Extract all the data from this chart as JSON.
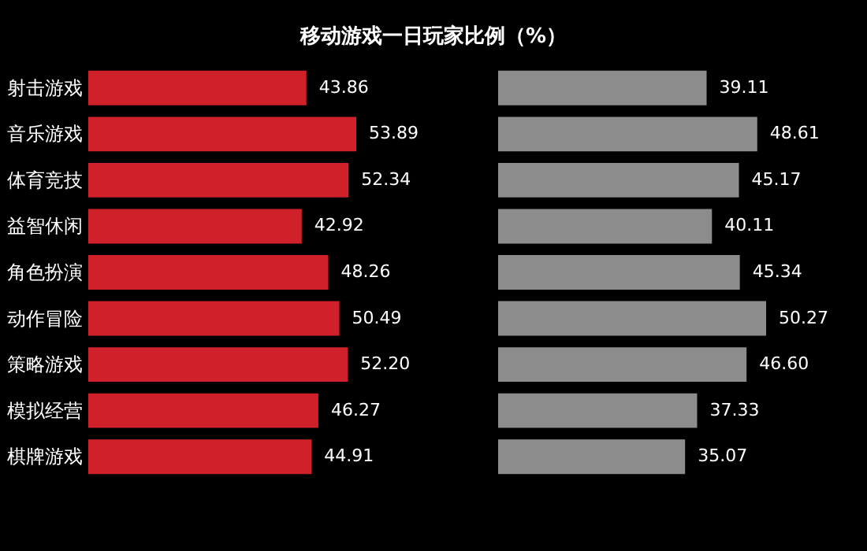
{
  "chart_data": [
    {
      "type": "bar",
      "title": "移动游戏一日玩家比例（%）",
      "orientation": "horizontal",
      "tick_labels": "y",
      "categories": [
        "射击游戏",
        "音乐游戏",
        "体育竞技",
        "益智休闲",
        "角色扮演",
        "动作冒险",
        "策略游戏",
        "模拟经营",
        "棋牌游戏"
      ],
      "series": [
        {
          "color": "#d0202a",
          "values": [
            43.86,
            53.89,
            52.34,
            42.92,
            48.26,
            50.49,
            52.2,
            46.27,
            44.91
          ],
          "value_labels": [
            "43.86",
            "53.89",
            "52.34",
            "42.92",
            "48.26",
            "50.49",
            "52.20",
            "46.27",
            "44.91"
          ]
        }
      ]
    },
    {
      "type": "bar",
      "orientation": "horizontal",
      "tick_labels": false,
      "categories": [
        null,
        null,
        null,
        null,
        null,
        null,
        null,
        null,
        null
      ],
      "series": [
        {
          "color": "#8c8c8c",
          "values": [
            39.11,
            48.61,
            45.17,
            40.11,
            45.34,
            50.27,
            46.6,
            37.33,
            35.07
          ],
          "value_labels": [
            "39.11",
            "48.61",
            "45.17",
            "40.11",
            "45.34",
            "50.27",
            "46.60",
            "37.33",
            "35.07"
          ]
        }
      ]
    }
  ]
}
